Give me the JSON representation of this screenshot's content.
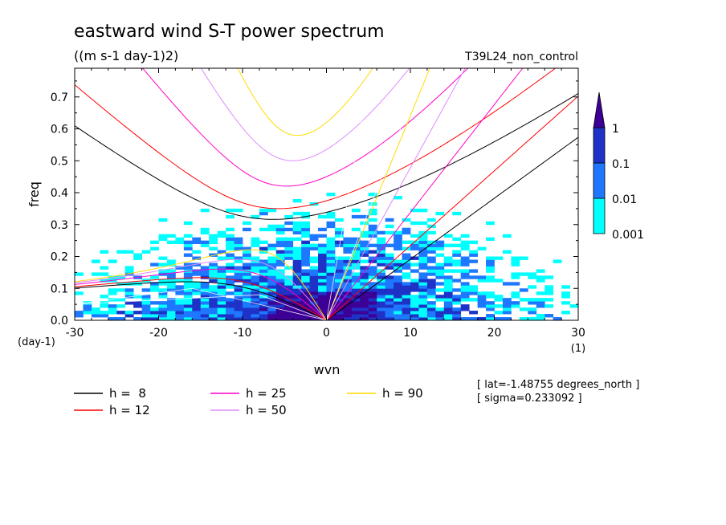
{
  "chart_data": {
    "type": "heatmap",
    "title": "eastward wind S-T power spectrum",
    "subtitle": "((m s-1 day-1)2)",
    "run_label": "T39L24_non_control",
    "xlabel": "wvn",
    "ylabel": "freq",
    "x_unit": "(1)",
    "y_unit": "(day-1)",
    "xlim": [
      -30,
      30
    ],
    "ylim": [
      0,
      0.79
    ],
    "x_ticks": [
      -30,
      -20,
      -10,
      0,
      10,
      20,
      30
    ],
    "y_ticks": [
      0.0,
      0.1,
      0.2,
      0.3,
      0.4,
      0.5,
      0.6,
      0.7
    ],
    "y_tick_labels": [
      "0.0",
      "0.1",
      "0.2",
      "0.3",
      "0.4",
      "0.5",
      "0.6",
      "0.7"
    ],
    "colorbar": {
      "levels": [
        "0.001",
        "0.01",
        "0.1",
        "1"
      ],
      "colors": [
        "#00ffff",
        "#1e78ff",
        "#1e32c8",
        "#3c0096"
      ],
      "extend": "max"
    },
    "dispersion_curves": [
      {
        "label": "h =  8",
        "h": 8,
        "color": "#000000"
      },
      {
        "label": "h = 12",
        "h": 12,
        "color": "#ff0000"
      },
      {
        "label": "h = 25",
        "h": 25,
        "color": "#ff00c8"
      },
      {
        "label": "h = 50",
        "h": 50,
        "color": "#dc8cff"
      },
      {
        "label": "h = 90",
        "h": 90,
        "color": "#ffdc00"
      }
    ],
    "annotations": [
      "[ lat=-1.48755 degrees_north ]",
      "[ sigma=0.233092 ]"
    ]
  }
}
